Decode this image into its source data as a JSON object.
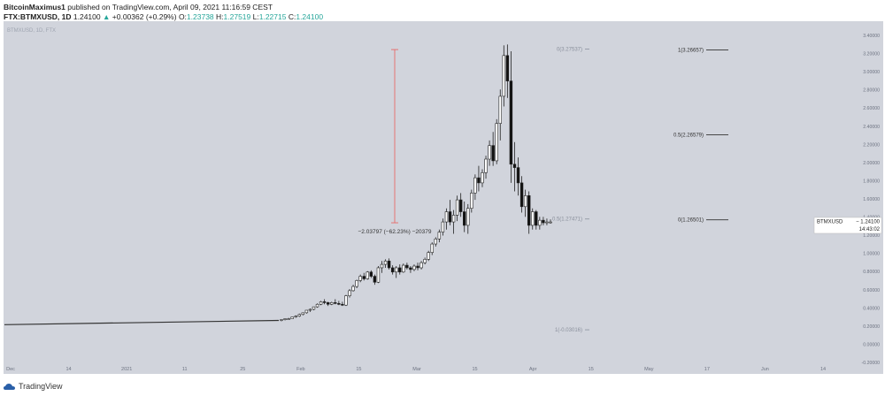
{
  "header": {
    "author": "BitcoinMaximus1",
    "published_text": "published on TradingView.com, April 09, 2021 11:16:59 CEST",
    "symbol": "FTX:BTMXUSD, 1D",
    "last": "1.24100",
    "change": "+0.00362 (+0.29%)",
    "o_label": "O:",
    "o_value": "1.23738",
    "h_label": "H:",
    "h_value": "1.27519",
    "l_label": "L:",
    "l_value": "1.22715",
    "c_label": "C:",
    "c_value": "1.24100"
  },
  "footer": {
    "brand": "TradingView"
  },
  "colors": {
    "panel": "#d1d4dc",
    "up": "#ffffff",
    "down": "#111111",
    "measure": "#e57373",
    "label_bg": "#ffffff"
  },
  "chart_data": {
    "type": "candlestick",
    "watermark": "BTMXUSD, 1D, FTX",
    "x_ticks": [
      "Dec",
      "14",
      "2021",
      "11",
      "25",
      "Feb",
      "15",
      "Mar",
      "15",
      "Apr",
      "15",
      "May",
      "17",
      "Jun",
      "14"
    ],
    "y_ticks": [
      "3.40000",
      "3.20000",
      "3.00000",
      "2.80000",
      "2.60000",
      "2.40000",
      "2.20000",
      "2.00000",
      "1.80000",
      "1.60000",
      "1.40000",
      "1.20000",
      "1.00000",
      "0.80000",
      "0.60000",
      "0.40000",
      "0.20000",
      "0.00000",
      "-0.20000"
    ],
    "ylim": [
      -0.3,
      3.5
    ],
    "price_tag": {
      "symbol": "BTMXUSD",
      "value": "1.24100",
      "timer": "14:43:02",
      "y": 1.241
    },
    "fib_levels": [
      {
        "label": "1(3.26657)",
        "y": 3.26657
      },
      {
        "label": "0.5(2.26579)",
        "y": 2.26579
      },
      {
        "label": "0(1.26501)",
        "y": 1.26501
      }
    ],
    "fib_retracement_left": [
      {
        "label": "0(3.27537)",
        "y": 3.27537
      },
      {
        "label": "0.5(1.27471)",
        "y": 1.27471
      },
      {
        "label": "1(-0.03016)",
        "y": -0.03016
      }
    ],
    "measure": {
      "text": "−2.03797 (−62.23%) −20379",
      "from": 3.27,
      "to": 1.23
    },
    "flat_period": {
      "start": 0.03,
      "end": 0.08
    },
    "candles": [
      [
        0.08,
        0.09,
        0.07,
        0.09
      ],
      [
        0.09,
        0.1,
        0.08,
        0.1
      ],
      [
        0.1,
        0.11,
        0.09,
        0.1
      ],
      [
        0.1,
        0.12,
        0.1,
        0.12
      ],
      [
        0.12,
        0.14,
        0.11,
        0.13
      ],
      [
        0.13,
        0.16,
        0.12,
        0.15
      ],
      [
        0.15,
        0.17,
        0.14,
        0.17
      ],
      [
        0.17,
        0.2,
        0.16,
        0.2
      ],
      [
        0.2,
        0.22,
        0.18,
        0.21
      ],
      [
        0.21,
        0.24,
        0.2,
        0.24
      ],
      [
        0.24,
        0.28,
        0.23,
        0.27
      ],
      [
        0.27,
        0.31,
        0.26,
        0.3
      ],
      [
        0.3,
        0.33,
        0.27,
        0.29
      ],
      [
        0.29,
        0.3,
        0.25,
        0.27
      ],
      [
        0.27,
        0.3,
        0.26,
        0.29
      ],
      [
        0.29,
        0.33,
        0.27,
        0.28
      ],
      [
        0.28,
        0.31,
        0.26,
        0.27
      ],
      [
        0.27,
        0.3,
        0.25,
        0.26
      ],
      [
        0.26,
        0.38,
        0.25,
        0.37
      ],
      [
        0.37,
        0.45,
        0.35,
        0.43
      ],
      [
        0.43,
        0.5,
        0.42,
        0.48
      ],
      [
        0.48,
        0.56,
        0.46,
        0.55
      ],
      [
        0.55,
        0.62,
        0.53,
        0.6
      ],
      [
        0.6,
        0.64,
        0.55,
        0.57
      ],
      [
        0.57,
        0.66,
        0.56,
        0.65
      ],
      [
        0.65,
        0.67,
        0.58,
        0.6
      ],
      [
        0.6,
        0.62,
        0.5,
        0.53
      ],
      [
        0.53,
        0.72,
        0.52,
        0.7
      ],
      [
        0.7,
        0.78,
        0.64,
        0.74
      ],
      [
        0.74,
        0.8,
        0.7,
        0.78
      ],
      [
        0.78,
        0.81,
        0.68,
        0.7
      ],
      [
        0.7,
        0.73,
        0.62,
        0.65
      ],
      [
        0.65,
        0.72,
        0.58,
        0.7
      ],
      [
        0.7,
        0.74,
        0.62,
        0.65
      ],
      [
        0.65,
        0.75,
        0.64,
        0.73
      ],
      [
        0.73,
        0.76,
        0.68,
        0.7
      ],
      [
        0.7,
        0.72,
        0.64,
        0.68
      ],
      [
        0.68,
        0.74,
        0.66,
        0.72
      ],
      [
        0.72,
        0.76,
        0.67,
        0.7
      ],
      [
        0.7,
        0.78,
        0.68,
        0.76
      ],
      [
        0.76,
        0.82,
        0.74,
        0.8
      ],
      [
        0.8,
        0.9,
        0.78,
        0.88
      ],
      [
        0.88,
        1.0,
        0.85,
        0.98
      ],
      [
        0.98,
        1.06,
        0.95,
        1.04
      ],
      [
        1.04,
        1.15,
        1.0,
        1.12
      ],
      [
        1.12,
        1.28,
        1.08,
        1.24
      ],
      [
        1.24,
        1.4,
        1.15,
        1.36
      ],
      [
        1.36,
        1.5,
        1.2,
        1.24
      ],
      [
        1.24,
        1.38,
        1.1,
        1.32
      ],
      [
        1.32,
        1.55,
        1.25,
        1.5
      ],
      [
        1.5,
        1.58,
        1.3,
        1.36
      ],
      [
        1.36,
        1.48,
        1.12,
        1.2
      ],
      [
        1.2,
        1.45,
        1.1,
        1.4
      ],
      [
        1.4,
        1.62,
        1.35,
        1.58
      ],
      [
        1.58,
        1.8,
        1.5,
        1.76
      ],
      [
        1.76,
        1.9,
        1.6,
        1.7
      ],
      [
        1.7,
        1.86,
        1.65,
        1.82
      ],
      [
        1.82,
        2.02,
        1.75,
        1.98
      ],
      [
        1.98,
        2.2,
        1.9,
        2.14
      ],
      [
        2.14,
        2.3,
        1.9,
        1.96
      ],
      [
        1.96,
        2.45,
        1.92,
        2.4
      ],
      [
        2.4,
        2.8,
        2.2,
        2.72
      ],
      [
        2.72,
        3.32,
        2.6,
        3.2
      ],
      [
        3.2,
        3.33,
        2.7,
        2.9
      ],
      [
        2.9,
        3.25,
        1.7,
        1.92
      ],
      [
        1.92,
        2.18,
        1.6,
        1.88
      ],
      [
        1.88,
        2.0,
        1.55,
        1.7
      ],
      [
        1.7,
        1.78,
        1.35,
        1.42
      ],
      [
        1.42,
        1.62,
        1.3,
        1.55
      ],
      [
        1.55,
        1.6,
        1.1,
        1.2
      ],
      [
        1.2,
        1.4,
        1.15,
        1.36
      ],
      [
        1.36,
        1.38,
        1.15,
        1.2
      ],
      [
        1.2,
        1.3,
        1.15,
        1.26
      ],
      [
        1.26,
        1.3,
        1.2,
        1.23
      ],
      [
        1.23,
        1.28,
        1.2,
        1.24
      ],
      [
        1.24,
        1.27,
        1.22,
        1.24
      ]
    ]
  }
}
